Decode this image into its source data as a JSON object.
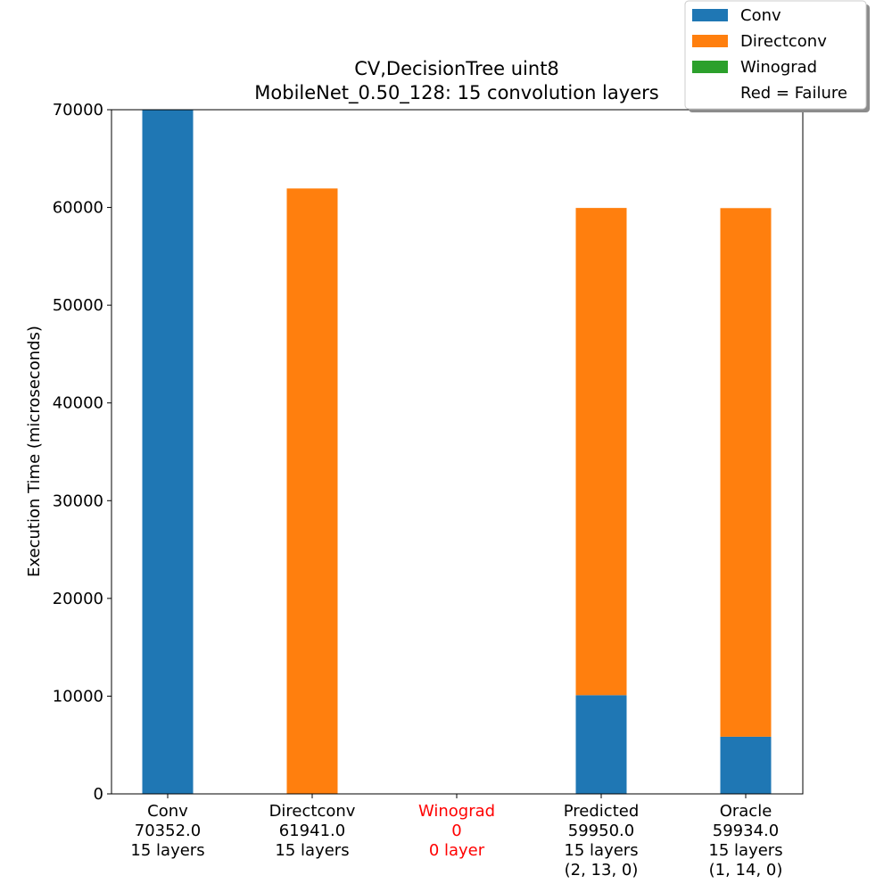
{
  "chart_data": {
    "type": "bar",
    "stacked": true,
    "title": [
      "CV,DecisionTree uint8",
      "MobileNet_0.50_128: 15 convolution layers"
    ],
    "ylabel": "Execution Time (microseconds)",
    "xlabel": "",
    "ylim": [
      0,
      70000
    ],
    "yticks": [
      0,
      10000,
      20000,
      30000,
      40000,
      50000,
      60000,
      70000
    ],
    "grid": false,
    "legend_position": "top-right",
    "legend_note": "Red = Failure",
    "failure_color": "#ff0000",
    "categories": [
      {
        "lines": [
          "Conv",
          "70352.0",
          "15 layers"
        ],
        "failed": false
      },
      {
        "lines": [
          "Directconv",
          "61941.0",
          "15 layers"
        ],
        "failed": false
      },
      {
        "lines": [
          "Winograd",
          "0",
          "0 layer"
        ],
        "failed": true
      },
      {
        "lines": [
          "Predicted",
          "59950.0",
          "15 layers",
          "(2, 13, 0)"
        ],
        "failed": false
      },
      {
        "lines": [
          "Oracle",
          "59934.0",
          "15 layers",
          "(1, 14, 0)"
        ],
        "failed": false
      }
    ],
    "series": [
      {
        "name": "Conv",
        "color": "#1f77b4",
        "values": [
          70352,
          0,
          0,
          10100,
          5850
        ]
      },
      {
        "name": "Directconv",
        "color": "#ff7f0e",
        "values": [
          0,
          61941,
          0,
          49850,
          54084
        ]
      },
      {
        "name": "Winograd",
        "color": "#2ca02c",
        "values": [
          0,
          0,
          0,
          0,
          0
        ]
      }
    ]
  }
}
